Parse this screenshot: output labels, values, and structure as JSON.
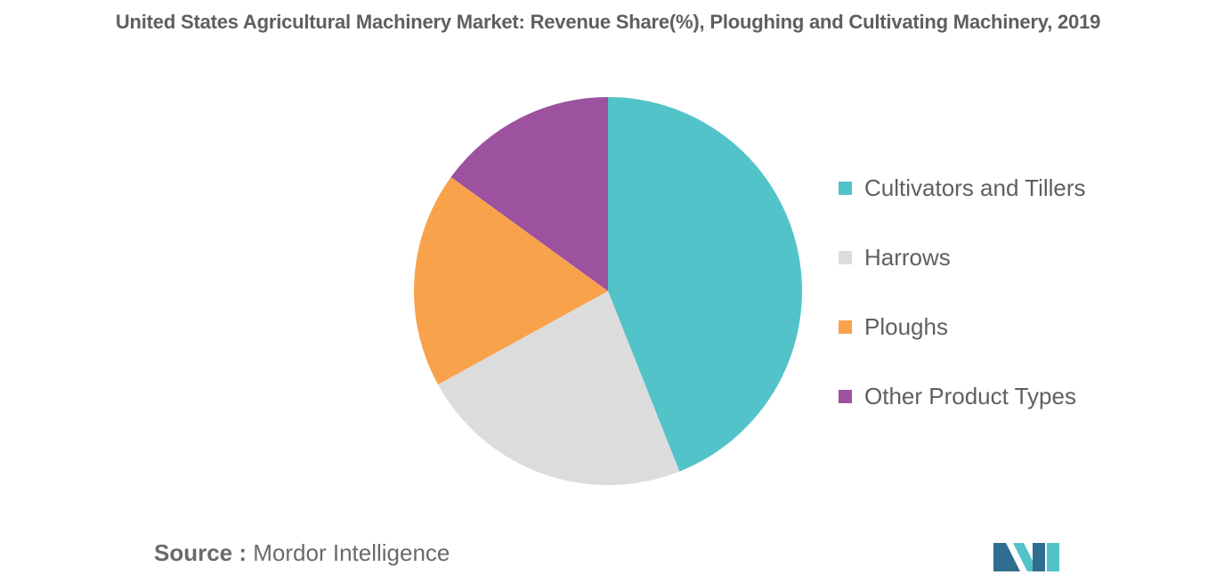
{
  "colors": {
    "cultivators": "#52c3c9",
    "harrows": "#dcdcdc",
    "ploughs": "#f9a24c",
    "other": "#9c529f",
    "title_text": "#5f5f5f",
    "source_text": "#6a6a6a",
    "logo_primary": "#2f6e8f",
    "logo_accent": "#52c3c9"
  },
  "source": {
    "prefix": "Source :",
    "name": "Mordor Intelligence"
  },
  "logo": {
    "icon": "mordor-intelligence-logo-icon"
  },
  "chart_data": {
    "type": "pie",
    "title": "United States Agricultural Machinery Market: Revenue Share(%), Ploughing and Cultivating Machinery, 2019",
    "categories": [
      "Cultivators and Tillers",
      "Harrows",
      "Ploughs",
      "Other Product Types"
    ],
    "values": [
      44,
      23,
      18,
      15
    ],
    "start_angle_deg": 0,
    "direction": "clockwise",
    "legend_position": "right",
    "data_labels": false
  }
}
